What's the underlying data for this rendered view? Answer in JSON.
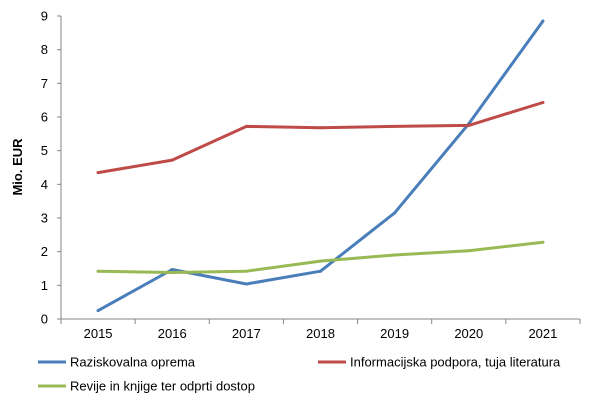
{
  "chart_data": {
    "type": "line",
    "title": "",
    "xlabel": "",
    "ylabel": "Mio. EUR",
    "categories": [
      "2015",
      "2016",
      "2017",
      "2018",
      "2019",
      "2020",
      "2021"
    ],
    "ylim": [
      0,
      9
    ],
    "yticks": [
      "0",
      "1",
      "2",
      "3",
      "4",
      "5",
      "6",
      "7",
      "8",
      "9"
    ],
    "grid": false,
    "legend_position": "bottom",
    "series": [
      {
        "name": "Raziskovalna oprema",
        "color": "#4a7ebb",
        "values": [
          0.25,
          1.47,
          1.04,
          1.42,
          3.15,
          5.8,
          8.85
        ]
      },
      {
        "name": "Informacijska podpora, tuja literatura",
        "color": "#be4b48",
        "values": [
          4.35,
          4.72,
          5.72,
          5.68,
          5.72,
          5.75,
          6.43
        ]
      },
      {
        "name": "Revije in knjige ter odprti dostop",
        "color": "#98b954",
        "values": [
          1.42,
          1.38,
          1.42,
          1.72,
          1.9,
          2.03,
          2.28
        ]
      }
    ]
  }
}
